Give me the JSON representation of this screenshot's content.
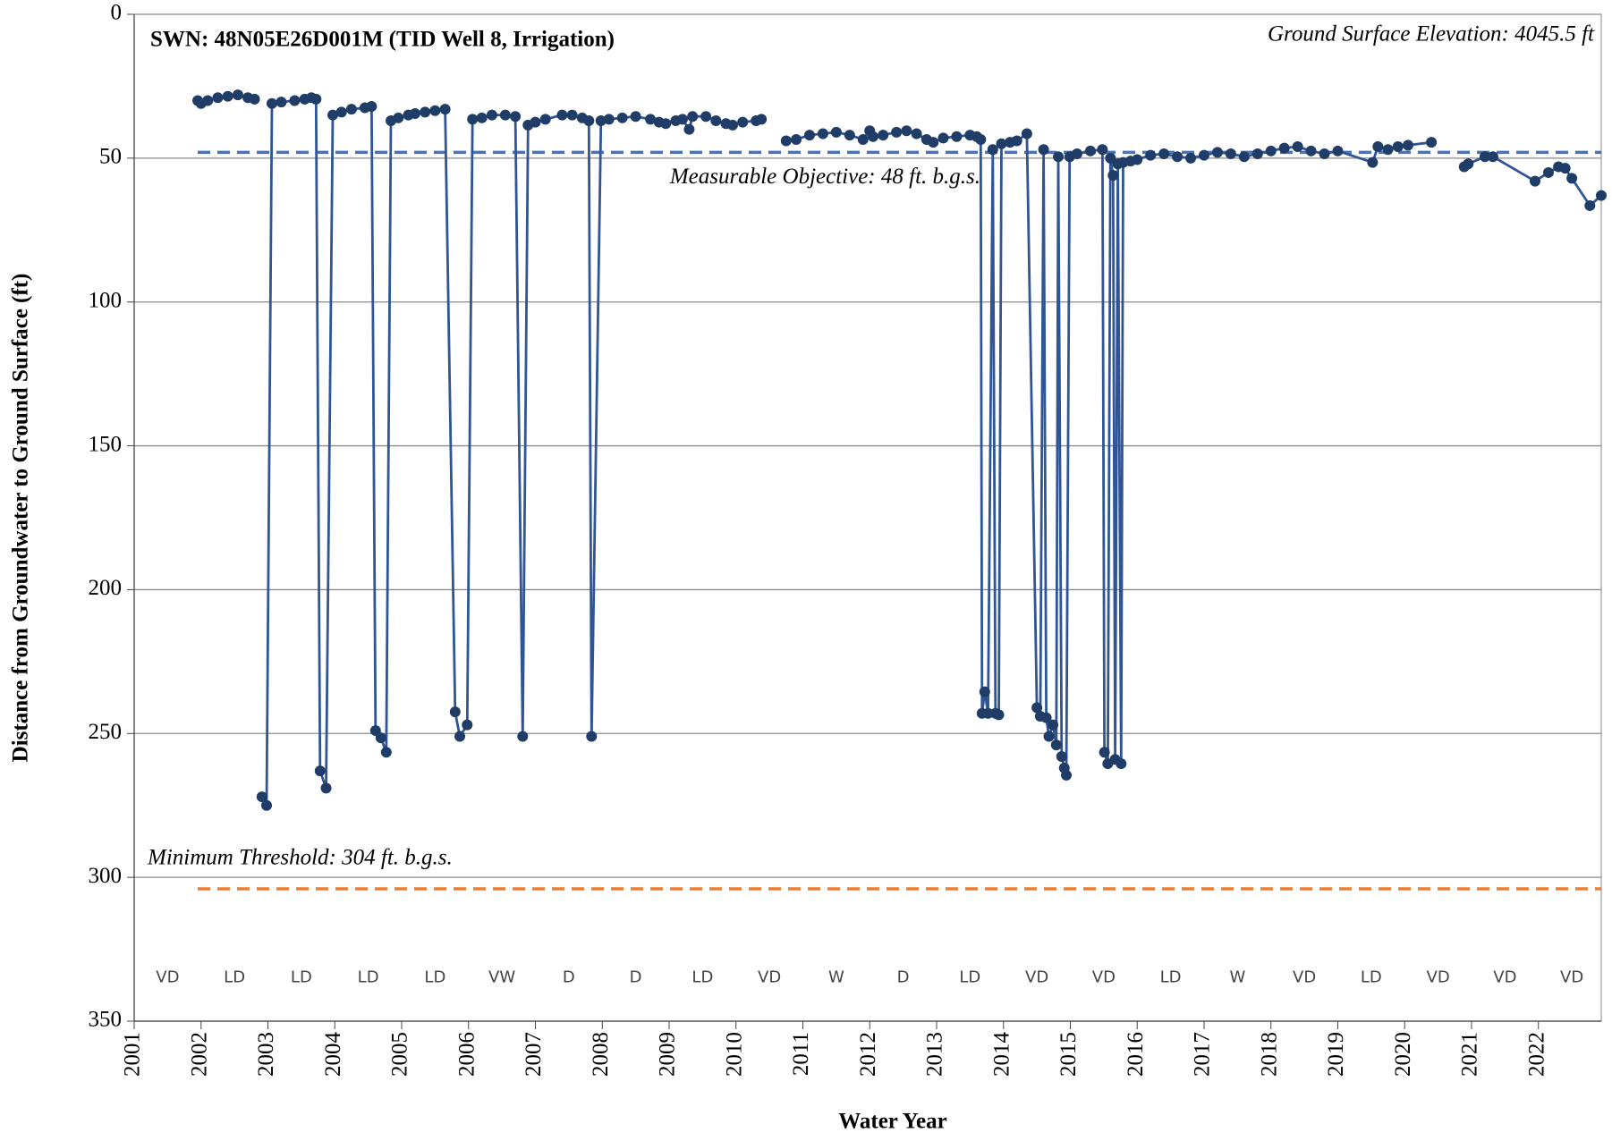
{
  "chart_data": {
    "type": "line",
    "title": "SWN: 48N05E26D001M (TID Well 8, Irrigation)",
    "annotation": "Ground Surface Elevation: 4045.5 ft",
    "x_label": "Water Year",
    "y_label": "Distance from Groundwater to Ground Surface (ft)",
    "xlim": [
      2001,
      2022.94
    ],
    "xticks": [
      2001,
      2002,
      2003,
      2004,
      2005,
      2006,
      2007,
      2008,
      2009,
      2010,
      2011,
      2012,
      2013,
      2014,
      2015,
      2016,
      2017,
      2018,
      2019,
      2020,
      2021,
      2022
    ],
    "ylim": [
      0,
      350
    ],
    "y_inverted": true,
    "yticks": [
      0,
      50,
      100,
      150,
      200,
      250,
      300,
      350
    ],
    "grid": true,
    "water_year_types": [
      "VD",
      "LD",
      "LD",
      "LD",
      "LD",
      "VW",
      "D",
      "D",
      "LD",
      "VD",
      "W",
      "D",
      "LD",
      "VD",
      "VD",
      "LD",
      "W",
      "VD",
      "LD",
      "VD",
      "VD",
      "VD"
    ],
    "reference_lines": [
      {
        "value": 48,
        "label": "Measurable Objective: 48 ft. b.g.s.",
        "color": "#4472c4"
      },
      {
        "value": 304,
        "label": "Minimum Threshold: 304 ft. b.g.s.",
        "color": "#ed7d31"
      }
    ],
    "series": [
      {
        "color": "#2f5597",
        "marker_color": "#1f3d66",
        "x": [
          2001.95,
          2002.0,
          2002.1,
          2002.25,
          2002.4,
          2002.55,
          2002.7,
          2002.8,
          null,
          2002.91,
          2002.98,
          2003.06,
          2003.2,
          2003.4,
          2003.55,
          2003.65,
          2003.72,
          2003.78,
          2003.87,
          2003.97,
          2004.1,
          2004.25,
          2004.45,
          2004.55,
          2004.61,
          2004.69,
          2004.77,
          2004.84,
          2004.95,
          2005.1,
          2005.2,
          2005.35,
          2005.5,
          2005.65,
          2005.8,
          2005.87,
          2005.98,
          2006.06,
          2006.2,
          2006.35,
          2006.55,
          2006.7,
          2006.81,
          2006.89,
          2007.0,
          2007.15,
          2007.4,
          2007.55,
          2007.7,
          2007.8,
          2007.84,
          2007.98,
          2008.1,
          2008.3,
          2008.5,
          2008.72,
          2008.85,
          2008.95,
          2009.1,
          2009.2,
          2009.3,
          2009.35,
          2009.55,
          2009.7,
          2009.85,
          2009.95,
          2010.1,
          2010.3,
          2010.38,
          null,
          2010.75,
          2010.9,
          2011.1,
          2011.3,
          2011.5,
          2011.7,
          2011.9,
          2012.0,
          2012.05,
          2012.2,
          2012.4,
          2012.55,
          2012.7,
          2012.85,
          2012.95,
          2013.1,
          2013.3,
          2013.5,
          2013.6,
          2013.66,
          2013.68,
          2013.72,
          2013.77,
          2013.84,
          2013.88,
          2013.93,
          2013.97,
          2014.1,
          2014.2,
          2014.35,
          2014.5,
          2014.55,
          2014.6,
          2014.64,
          2014.68,
          2014.74,
          2014.79,
          2014.82,
          2014.87,
          2014.91,
          2014.94,
          2014.99,
          2015.1,
          2015.3,
          2015.48,
          2015.51,
          2015.56,
          2015.6,
          2015.64,
          2015.67,
          2015.71,
          2015.76,
          2015.79,
          2015.9,
          2016.0,
          2016.2,
          2016.4,
          2016.6,
          2016.8,
          2017.0,
          2017.2,
          2017.4,
          2017.6,
          2017.8,
          2018.0,
          2018.2,
          2018.4,
          2018.6,
          2018.8,
          2019.0,
          2019.52,
          2019.6,
          2019.75,
          2019.9,
          2020.05,
          2020.4,
          null,
          2020.89,
          2020.95,
          2021.2,
          2021.32,
          2021.95,
          2022.15,
          2022.3,
          2022.4,
          2022.5,
          2022.77,
          2022.94
        ],
        "values": [
          30,
          31,
          30,
          29,
          28.5,
          28,
          29,
          29.5,
          null,
          272,
          275,
          31,
          30.5,
          30,
          29.5,
          29,
          29.5,
          263,
          269,
          35,
          34,
          33,
          32.5,
          32,
          249,
          251.5,
          256.5,
          37,
          36,
          35,
          34.5,
          34,
          33.5,
          33,
          242.5,
          251,
          247,
          36.5,
          36,
          35,
          35,
          35.5,
          251,
          38.5,
          37.5,
          36.5,
          35,
          35,
          36,
          37,
          251,
          37,
          36.5,
          36,
          35.5,
          36.5,
          37.5,
          38,
          37,
          36.5,
          40,
          35.5,
          35.5,
          37,
          38,
          38.5,
          37.5,
          37,
          36.5,
          null,
          44,
          43.5,
          42,
          41.5,
          41,
          42,
          43.5,
          40.5,
          42.5,
          42,
          41,
          40.5,
          41.5,
          43.5,
          44.5,
          43,
          42.5,
          42,
          42.5,
          43.5,
          243,
          235.5,
          243,
          47,
          243,
          243.5,
          45,
          44.5,
          44,
          41.5,
          241,
          244,
          47,
          244.5,
          251,
          247,
          254,
          49.5,
          258,
          262,
          264.5,
          49.5,
          48.5,
          47.5,
          47,
          256.5,
          260.5,
          50,
          56,
          259,
          52,
          260.5,
          51.5,
          51,
          50.5,
          49,
          48.5,
          49.5,
          50,
          49,
          48,
          48.5,
          49.5,
          48.5,
          47.5,
          46.5,
          46,
          47.5,
          48.5,
          47.5,
          51.5,
          46,
          47,
          46,
          45.5,
          44.5,
          null,
          53,
          52,
          49.5,
          49.5,
          58,
          55,
          53,
          53.5,
          57,
          66.5,
          63
        ]
      }
    ]
  }
}
